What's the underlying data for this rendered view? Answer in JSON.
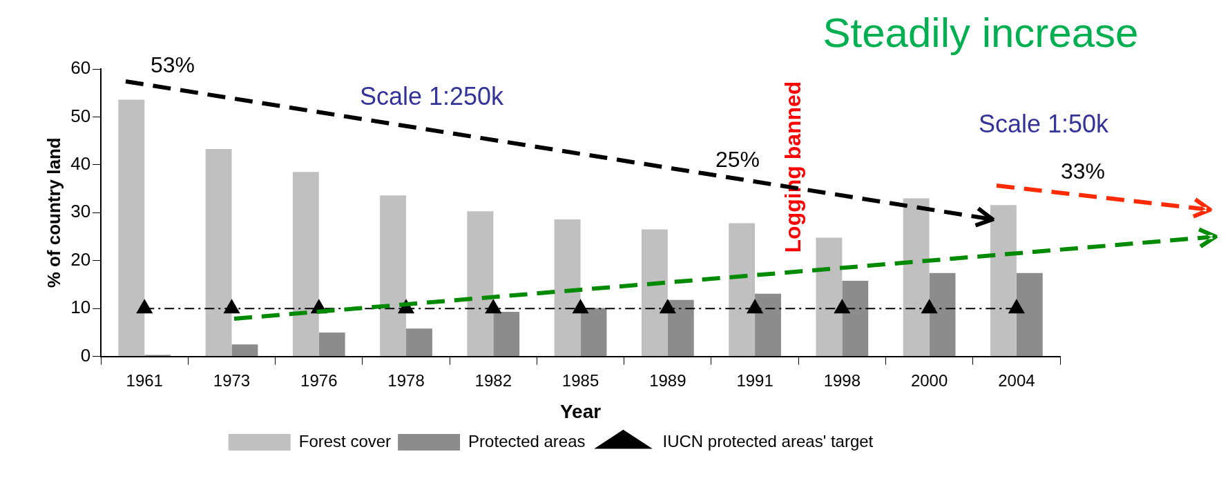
{
  "chart_data": {
    "type": "bar",
    "xlabel": "Year",
    "ylabel": "% of country land",
    "categories": [
      "1961",
      "1973",
      "1976",
      "1978",
      "1982",
      "1985",
      "1989",
      "1991",
      "1998",
      "2000",
      "2004"
    ],
    "series": [
      {
        "name": "Forest cover",
        "color": "#c0c0c0",
        "values": [
          53.6,
          43.3,
          38.5,
          33.6,
          30.3,
          28.6,
          26.5,
          27.8,
          24.8,
          33,
          31.6
        ]
      },
      {
        "name": "Protected areas",
        "color": "#8c8c8c",
        "values": [
          0.3,
          2.5,
          5,
          5.8,
          9.3,
          10.1,
          11.8,
          13.1,
          15.8,
          17.4,
          17.4
        ]
      },
      {
        "name": "IUCN protected areas' target",
        "type": "line",
        "color": "#000000",
        "marker": "triangle",
        "line_style": "dashed",
        "values": [
          10,
          10,
          10,
          10,
          10,
          10,
          10,
          10,
          10,
          10,
          10
        ]
      }
    ],
    "ylim": [
      0,
      60
    ],
    "yticks": [
      0,
      10,
      20,
      30,
      40,
      50,
      60
    ],
    "grid": false,
    "legend": "bottom",
    "annotations": [
      "Steadily increase",
      "Scale 1:250k",
      "Scale 1:50k",
      "53%",
      "25%",
      "33%",
      "Logging banned"
    ]
  }
}
